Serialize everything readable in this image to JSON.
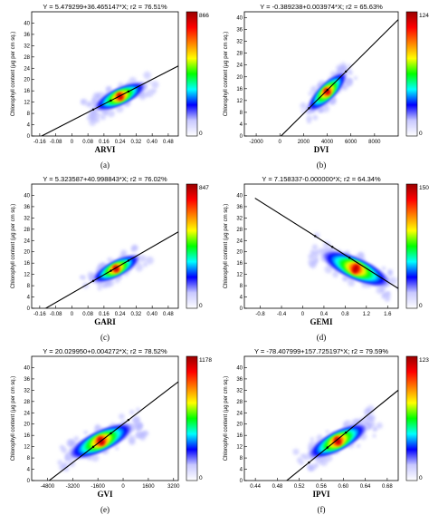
{
  "chart_data": [
    {
      "type": "heatmap",
      "panel": "(a)",
      "title": "Y = 5.479299+36.465147*X; r2 = 76.51%",
      "xlabel": "ARVI",
      "ylabel": "Chlorophyll content (µg per cm sq.)",
      "xticks": [
        "-0.16",
        "-0.08",
        "0",
        "0.08",
        "0.16",
        "0.24",
        "0.32",
        "0.40",
        "0.48"
      ],
      "yticks": [
        "0",
        "4",
        "8",
        "12",
        "16",
        "20",
        "24",
        "28",
        "32",
        "36",
        "40"
      ],
      "xlim": [
        -0.2,
        0.53
      ],
      "ylim": [
        0,
        44
      ],
      "fit": {
        "intercept": 5.479299,
        "slope": 36.465147,
        "r2_percent": 76.51
      },
      "density": {
        "center_x": 0.24,
        "center_y": 14,
        "spread_x": 0.24,
        "spread_y": 8,
        "orientation": "positive"
      },
      "colorbar": {
        "max_label": "866",
        "min_label": "0",
        "colors": [
          "#ffffff",
          "#c8c8ff",
          "#0000ff",
          "#00ffff",
          "#00ff00",
          "#ffff00",
          "#ff8000",
          "#ff0000",
          "#990000"
        ]
      }
    },
    {
      "type": "heatmap",
      "panel": "(b)",
      "title": "Y = -0.389238+0.003974*X; r2 = 65.63%",
      "xlabel": "DVI",
      "ylabel": "Chlorophyll content (µg per cm sq.)",
      "xticks": [
        "-2000",
        "0",
        "2000",
        "4000",
        "6000",
        "8000"
      ],
      "yticks": [
        "0",
        "4",
        "8",
        "12",
        "16",
        "20",
        "24",
        "28",
        "32",
        "36",
        "40"
      ],
      "xlim": [
        -3000,
        10000
      ],
      "ylim": [
        0,
        42
      ],
      "fit": {
        "intercept": -0.389238,
        "slope": 0.003974,
        "r2_percent": 65.63
      },
      "density": {
        "center_x": 4000,
        "center_y": 15,
        "spread_x": 3000,
        "spread_y": 12,
        "orientation": "positive"
      },
      "colorbar": {
        "max_label": "124",
        "min_label": "0",
        "colors": [
          "#ffffff",
          "#c8c8ff",
          "#0000ff",
          "#00ffff",
          "#00ff00",
          "#ffff00",
          "#ff8000",
          "#ff0000",
          "#990000"
        ]
      }
    },
    {
      "type": "heatmap",
      "panel": "(c)",
      "title": "Y = 5.323587+40.998843*X; r2 = 76.02%",
      "xlabel": "GARI",
      "ylabel": "Chlorophyll content (µg per cm sq.)",
      "xticks": [
        "-0.16",
        "-0.08",
        "0",
        "0.08",
        "0.16",
        "0.24",
        "0.32",
        "0.40",
        "0.48"
      ],
      "yticks": [
        "0",
        "4",
        "8",
        "12",
        "16",
        "20",
        "24",
        "28",
        "32",
        "36",
        "40"
      ],
      "xlim": [
        -0.2,
        0.53
      ],
      "ylim": [
        0,
        44
      ],
      "fit": {
        "intercept": 5.323587,
        "slope": 40.998843,
        "r2_percent": 76.02
      },
      "density": {
        "center_x": 0.22,
        "center_y": 14,
        "spread_x": 0.22,
        "spread_y": 8,
        "orientation": "positive"
      },
      "colorbar": {
        "max_label": "847",
        "min_label": "0",
        "colors": [
          "#ffffff",
          "#c8c8ff",
          "#0000ff",
          "#00ffff",
          "#00ff00",
          "#ffff00",
          "#ff8000",
          "#ff0000",
          "#990000"
        ]
      }
    },
    {
      "type": "heatmap",
      "panel": "(d)",
      "title": "Y = 7.158337-0.000000*X; r2 = 64.34%",
      "xlabel": "GEMI",
      "ylabel": "Chlorophyll content (µg per cm sq.)",
      "xticks": [
        "-0.8",
        "-0.4",
        "0",
        "0.4",
        "0.8",
        "1.2",
        "1.6"
      ],
      "yticks": [
        "0",
        "4",
        "8",
        "12",
        "16",
        "20",
        "24",
        "28",
        "32",
        "36",
        "40"
      ],
      "xlim": [
        -1.1,
        1.8
      ],
      "ylim": [
        0,
        44
      ],
      "fit": {
        "x0": -0.9,
        "y0": 39,
        "x1": 1.8,
        "y1": 7
      },
      "density": {
        "center_x": 1.0,
        "center_y": 14,
        "spread_x": 1.2,
        "spread_y": 10,
        "orientation": "negative"
      },
      "colorbar": {
        "max_label": "1509",
        "min_label": "0",
        "colors": [
          "#ffffff",
          "#c8c8ff",
          "#0000ff",
          "#00ffff",
          "#00ff00",
          "#ffff00",
          "#ff8000",
          "#ff0000",
          "#990000"
        ]
      }
    },
    {
      "type": "heatmap",
      "panel": "(e)",
      "title": "Y = 20.029950+0.004272*X; r2 = 78.52%",
      "xlabel": "GVI",
      "ylabel": "Chlorophyll content (µg per cm sq.)",
      "xticks": [
        "-4800",
        "-3200",
        "-1600",
        "0",
        "1600",
        "3200"
      ],
      "yticks": [
        "0",
        "4",
        "8",
        "12",
        "16",
        "20",
        "24",
        "28",
        "32",
        "36",
        "40"
      ],
      "xlim": [
        -5800,
        3500
      ],
      "ylim": [
        0,
        44
      ],
      "fit": {
        "intercept": 20.02995,
        "slope": 0.004272,
        "r2_percent": 78.52
      },
      "density": {
        "center_x": -1400,
        "center_y": 14,
        "spread_x": 3800,
        "spread_y": 10,
        "orientation": "positive"
      },
      "colorbar": {
        "max_label": "1178",
        "min_label": "0",
        "colors": [
          "#ffffff",
          "#c8c8ff",
          "#0000ff",
          "#00ffff",
          "#00ff00",
          "#ffff00",
          "#ff8000",
          "#ff0000",
          "#990000"
        ]
      }
    },
    {
      "type": "heatmap",
      "panel": "(f)",
      "title": "Y = -78.407999+157.725197*X; r2 = 79.59%",
      "xlabel": "IPVI",
      "ylabel": "Chlorophyll content (µg per cm sq.)",
      "xticks": [
        "0.44",
        "0.48",
        "0.52",
        "0.56",
        "0.60",
        "0.64",
        "0.68"
      ],
      "yticks": [
        "0",
        "4",
        "8",
        "12",
        "16",
        "20",
        "24",
        "28",
        "32",
        "36",
        "40"
      ],
      "xlim": [
        0.42,
        0.7
      ],
      "ylim": [
        0,
        44
      ],
      "fit": {
        "intercept": -78.407999,
        "slope": 157.725197,
        "r2_percent": 79.59
      },
      "density": {
        "center_x": 0.59,
        "center_y": 14,
        "spread_x": 0.1,
        "spread_y": 10,
        "orientation": "positive"
      },
      "colorbar": {
        "max_label": "1235",
        "min_label": "0",
        "colors": [
          "#ffffff",
          "#c8c8ff",
          "#0000ff",
          "#00ffff",
          "#00ff00",
          "#ffff00",
          "#ff8000",
          "#ff0000",
          "#990000"
        ]
      }
    }
  ]
}
